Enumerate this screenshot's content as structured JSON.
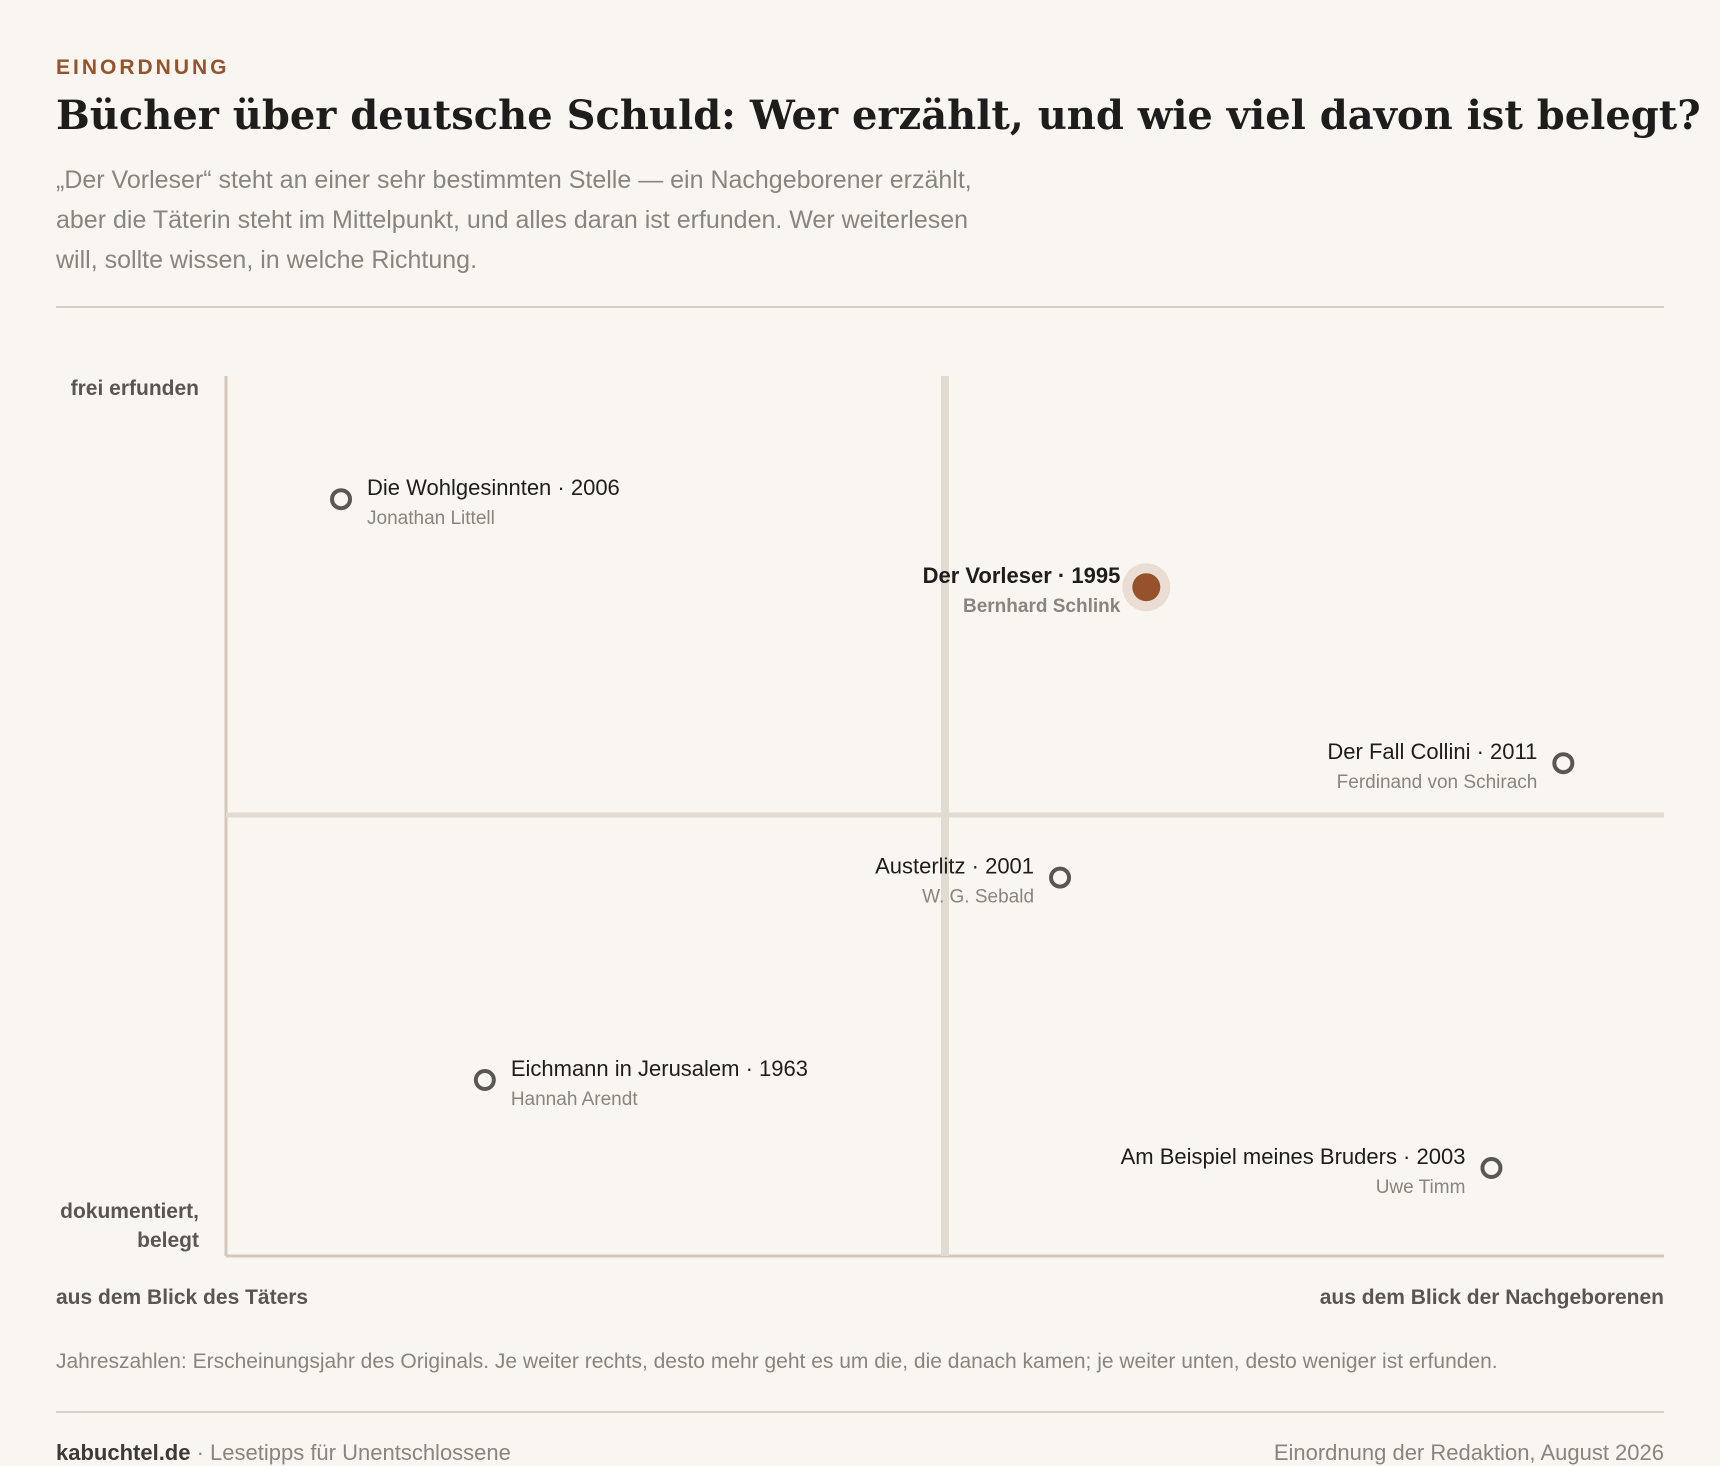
{
  "header": {
    "kicker": "EINORDNUNG",
    "title": "Bücher über deutsche Schuld: Wer erzählt, und wie viel davon ist belegt?",
    "subtitle": "„Der Vorleser“ steht an einer sehr bestimmten Stelle — ein Nachgeborener erzählt, aber die Täterin steht im Mittelpunkt, und alles daran ist erfunden. Wer weiterlesen will, sollte wissen, in welche Richtung."
  },
  "axes": {
    "y_top": "frei erfunden",
    "y_bottom": "dokumentiert, belegt",
    "x_left": "aus dem Blick des Täters",
    "x_right": "aus dem Blick der Nachgeborenen"
  },
  "note": "Jahreszahlen: Erscheinungsjahr des Originals. Je weiter rechts, desto mehr geht es um die, die danach kamen; je weiter unten, desto weniger ist erfunden.",
  "footer": {
    "site": "kabuchtel.de",
    "tagline": " · Lesetipps für Unentschlossene",
    "credit": "Einordnung der Redaktion, August 2026"
  },
  "colors": {
    "accent": "#96522a",
    "point_stroke": "#5b5651",
    "axis": "#d2c8bb",
    "text_dark": "#1f1d1b",
    "text_muted": "#8a847d"
  },
  "chart_data": {
    "type": "scatter",
    "xlim": [
      0,
      1
    ],
    "ylim": [
      0,
      1
    ],
    "grid": false,
    "points": [
      {
        "label": "Die Wohlgesinnten · 2006",
        "author": "Jonathan Littell",
        "x": 0.08,
        "y": 0.86,
        "highlight": false
      },
      {
        "label": "Der Vorleser · 1995",
        "author": "Bernhard Schlink",
        "x": 0.64,
        "y": 0.76,
        "highlight": true
      },
      {
        "label": "Der Fall Collini · 2011",
        "author": "Ferdinand von Schirach",
        "x": 0.93,
        "y": 0.56,
        "highlight": false
      },
      {
        "label": "Austerlitz · 2001",
        "author": "W. G. Sebald",
        "x": 0.58,
        "y": 0.43,
        "highlight": false
      },
      {
        "label": "Eichmann in Jerusalem · 1963",
        "author": "Hannah Arendt",
        "x": 0.18,
        "y": 0.2,
        "highlight": false
      },
      {
        "label": "Am Beispiel meines Bruders · 2003",
        "author": "Uwe Timm",
        "x": 0.88,
        "y": 0.1,
        "highlight": false
      }
    ]
  }
}
